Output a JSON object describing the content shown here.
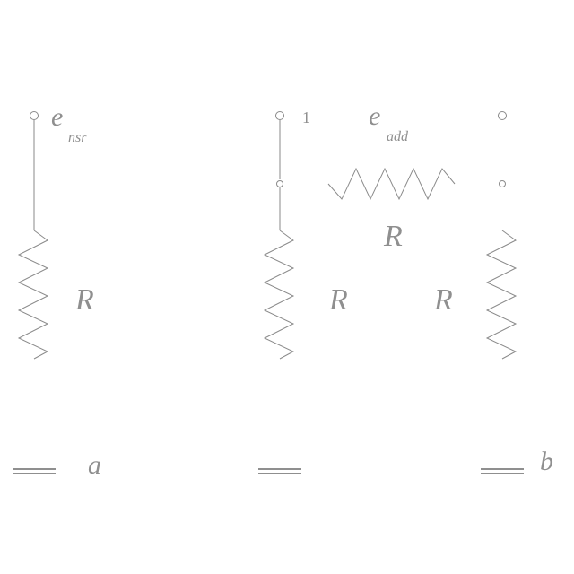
{
  "left_circuit": {
    "source_label": "e",
    "source_subscript": "nsr",
    "resistor_label": "R",
    "tag": "a"
  },
  "right_circuit": {
    "terminal_label": "1",
    "source_label": "e",
    "source_subscript": "add",
    "series_resistor_label": "R",
    "left_resistor_label": "R",
    "right_resistor_label": "R",
    "tag": "b"
  },
  "colors": {
    "line": "#8a8a8a",
    "text": "#8f8f8f",
    "background": "#ffffff"
  }
}
